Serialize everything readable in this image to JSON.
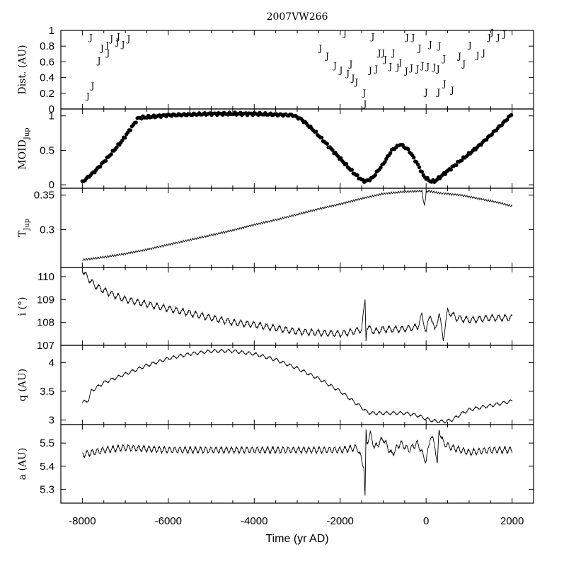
{
  "figure": {
    "title": "2007VW266",
    "xlabel": "Time (yr AD)"
  },
  "chart_data": [
    {
      "id": "dist",
      "type": "scatter",
      "ylabel": "Dist. (AU)",
      "marker": "J",
      "xlim": [
        -8500,
        2500
      ],
      "ylim": [
        0,
        1
      ],
      "yticks": [
        0,
        0.2,
        0.4,
        0.6,
        0.8,
        1
      ],
      "ytick_labels": [
        "0",
        "0.2",
        "0.4",
        "0.6",
        "0.8",
        "1"
      ],
      "points": [
        {
          "x": -7870,
          "y": 0.17
        },
        {
          "x": -7760,
          "y": 0.3
        },
        {
          "x": -7610,
          "y": 0.62
        },
        {
          "x": -7540,
          "y": 0.78
        },
        {
          "x": -7420,
          "y": 0.82
        },
        {
          "x": -7400,
          "y": 0.72
        },
        {
          "x": -7320,
          "y": 0.9
        },
        {
          "x": -7180,
          "y": 0.86
        },
        {
          "x": -7160,
          "y": 0.93
        },
        {
          "x": -7050,
          "y": 0.83
        },
        {
          "x": -6920,
          "y": 0.9
        },
        {
          "x": -7800,
          "y": 0.92
        },
        {
          "x": -2460,
          "y": 0.78
        },
        {
          "x": -2300,
          "y": 0.68
        },
        {
          "x": -2120,
          "y": 0.56
        },
        {
          "x": -1980,
          "y": 0.5
        },
        {
          "x": -1820,
          "y": 0.46
        },
        {
          "x": -1750,
          "y": 0.58
        },
        {
          "x": -1620,
          "y": 0.35
        },
        {
          "x": -1440,
          "y": 0.21
        },
        {
          "x": -1420,
          "y": 0.07
        },
        {
          "x": -1300,
          "y": 0.5
        },
        {
          "x": -1160,
          "y": 0.52
        },
        {
          "x": -1090,
          "y": 0.72
        },
        {
          "x": -1000,
          "y": 0.72
        },
        {
          "x": -950,
          "y": 0.64
        },
        {
          "x": -830,
          "y": 0.55
        },
        {
          "x": -760,
          "y": 0.72
        },
        {
          "x": -660,
          "y": 0.54
        },
        {
          "x": -600,
          "y": 0.6
        },
        {
          "x": -460,
          "y": 0.49
        },
        {
          "x": -340,
          "y": 0.53
        },
        {
          "x": -200,
          "y": 0.52
        },
        {
          "x": -150,
          "y": 0.78
        },
        {
          "x": -80,
          "y": 0.56
        },
        {
          "x": 40,
          "y": 0.55
        },
        {
          "x": 100,
          "y": 0.83
        },
        {
          "x": 190,
          "y": 0.54
        },
        {
          "x": 280,
          "y": 0.52
        },
        {
          "x": 310,
          "y": 0.81
        },
        {
          "x": 420,
          "y": 0.65
        },
        {
          "x": 430,
          "y": 0.33
        },
        {
          "x": 610,
          "y": 0.25
        },
        {
          "x": -1890,
          "y": 0.97
        },
        {
          "x": -1240,
          "y": 0.93
        },
        {
          "x": -440,
          "y": 0.92
        },
        {
          "x": -300,
          "y": 0.92
        },
        {
          "x": 0,
          "y": 0.22
        },
        {
          "x": 780,
          "y": 0.68
        },
        {
          "x": 880,
          "y": 0.58
        },
        {
          "x": 1020,
          "y": 0.82
        },
        {
          "x": 1200,
          "y": 0.69
        },
        {
          "x": 1340,
          "y": 0.72
        },
        {
          "x": 1470,
          "y": 0.92
        },
        {
          "x": 1530,
          "y": 0.98
        },
        {
          "x": 1680,
          "y": 0.92
        },
        {
          "x": 1820,
          "y": 0.96
        },
        {
          "x": -1700,
          "y": 0.4
        },
        {
          "x": 290,
          "y": 0.22
        }
      ]
    },
    {
      "id": "moid",
      "type": "scatter",
      "ylabel_main": "MOID",
      "ylabel_sub": "Jup",
      "xlim": [
        -8500,
        2500
      ],
      "ylim": [
        -0.05,
        1.1
      ],
      "yticks": [
        0,
        0.5,
        1
      ],
      "ytick_labels": [
        "0",
        "0.5",
        "1"
      ],
      "x": [
        -8000,
        -7700,
        -7400,
        -7100,
        -6800,
        -6700,
        -6000,
        -5000,
        -4000,
        -3100,
        -2900,
        -2600,
        -2300,
        -2000,
        -1700,
        -1500,
        -1400,
        -1250,
        -1000,
        -800,
        -600,
        -400,
        -200,
        -50,
        100,
        200,
        300,
        600,
        900,
        1200,
        1500,
        1800,
        2000
      ],
      "y": [
        0.04,
        0.2,
        0.4,
        0.62,
        0.88,
        0.97,
        1.01,
        1.03,
        1.03,
        1.01,
        0.95,
        0.78,
        0.58,
        0.38,
        0.18,
        0.07,
        0.05,
        0.1,
        0.3,
        0.5,
        0.59,
        0.5,
        0.3,
        0.12,
        0.05,
        0.05,
        0.1,
        0.25,
        0.4,
        0.55,
        0.72,
        0.9,
        1.03
      ]
    },
    {
      "id": "tjup",
      "type": "line",
      "ylabel_main": "T",
      "ylabel_sub": "Jup",
      "xlim": [
        -8500,
        2500
      ],
      "ylim": [
        0.245,
        0.36
      ],
      "yticks": [
        0.3,
        0.35
      ],
      "ytick_labels": [
        "0.3",
        "0.35"
      ],
      "x": [
        -8000,
        -7500,
        -7000,
        -6500,
        -6000,
        -5500,
        -5000,
        -4500,
        -4000,
        -3500,
        -3000,
        -2500,
        -2000,
        -1500,
        -1000,
        -500,
        -100,
        -40,
        0,
        50,
        300,
        800,
        1300,
        1700,
        2000
      ],
      "y": [
        0.256,
        0.26,
        0.265,
        0.271,
        0.278,
        0.285,
        0.292,
        0.299,
        0.307,
        0.314,
        0.322,
        0.33,
        0.337,
        0.345,
        0.352,
        0.355,
        0.356,
        0.334,
        0.354,
        0.356,
        0.353,
        0.35,
        0.344,
        0.339,
        0.334
      ]
    },
    {
      "id": "incl",
      "type": "line",
      "ylabel": "i (°)",
      "xlim": [
        -8500,
        2500
      ],
      "ylim": [
        107,
        110.4
      ],
      "yticks": [
        107,
        108,
        109,
        110
      ],
      "ytick_labels": [
        "107",
        "108",
        "109",
        "110"
      ],
      "x": [
        -8000,
        -7900,
        -7700,
        -7400,
        -7000,
        -6500,
        -6000,
        -5500,
        -5000,
        -4500,
        -4000,
        -3500,
        -3000,
        -2500,
        -2000,
        -1700,
        -1500,
        -1420,
        -1400,
        -1380,
        -1200,
        -1000,
        -600,
        -200,
        -100,
        0,
        100,
        200,
        300,
        400,
        500,
        700,
        1000,
        1500,
        2000
      ],
      "y": [
        110.3,
        110.0,
        109.6,
        109.3,
        109.0,
        108.8,
        108.6,
        108.4,
        108.2,
        108.0,
        107.9,
        107.75,
        107.6,
        107.55,
        107.5,
        107.6,
        107.7,
        109.0,
        107.3,
        107.8,
        107.6,
        107.7,
        107.7,
        107.8,
        108.3,
        107.6,
        108.4,
        107.6,
        108.4,
        107.3,
        108.5,
        108.2,
        108.1,
        108.2,
        108.2
      ]
    },
    {
      "id": "peri",
      "type": "line",
      "ylabel": "q (AU)",
      "xlim": [
        -8500,
        2500
      ],
      "ylim": [
        2.92,
        4.3
      ],
      "yticks": [
        3,
        3.5,
        4
      ],
      "ytick_labels": [
        "3",
        "3.5",
        "4"
      ],
      "x": [
        -8000,
        -7850,
        -7800,
        -7500,
        -7000,
        -6500,
        -6000,
        -5500,
        -5000,
        -4500,
        -4000,
        -3500,
        -3000,
        -2500,
        -2000,
        -1700,
        -1500,
        -1400,
        -1300,
        -1000,
        -500,
        -200,
        0,
        200,
        400,
        600,
        800,
        1000,
        1500,
        2000
      ],
      "y": [
        3.3,
        3.35,
        3.5,
        3.65,
        3.8,
        3.95,
        4.07,
        4.15,
        4.2,
        4.2,
        4.15,
        4.05,
        3.9,
        3.72,
        3.5,
        3.33,
        3.22,
        3.15,
        3.12,
        3.12,
        3.12,
        3.08,
        3.02,
        2.98,
        2.97,
        3.0,
        3.1,
        3.18,
        3.25,
        3.33
      ]
    },
    {
      "id": "semi",
      "type": "line",
      "ylabel": "a (AU)",
      "xlim": [
        -8500,
        2500
      ],
      "ylim": [
        5.24,
        5.58
      ],
      "yticks": [
        5.3,
        5.4,
        5.5
      ],
      "ytick_labels": [
        "5.3",
        "5.4",
        "5.5"
      ],
      "x": [
        -8000,
        -7500,
        -7000,
        -6000,
        -5000,
        -4000,
        -3000,
        -2000,
        -1600,
        -1450,
        -1420,
        -1400,
        -1380,
        -1300,
        -1200,
        -1000,
        -800,
        -600,
        -400,
        -200,
        0,
        100,
        200,
        260,
        300,
        400,
        600,
        1000,
        1500,
        2000
      ],
      "y": [
        5.45,
        5.47,
        5.48,
        5.47,
        5.47,
        5.47,
        5.47,
        5.47,
        5.48,
        5.4,
        5.26,
        5.55,
        5.5,
        5.54,
        5.48,
        5.52,
        5.45,
        5.5,
        5.47,
        5.5,
        5.42,
        5.53,
        5.5,
        5.4,
        5.56,
        5.5,
        5.48,
        5.46,
        5.47,
        5.47
      ]
    }
  ],
  "xaxis": {
    "ticks": [
      -8000,
      -6000,
      -4000,
      -2000,
      0,
      2000
    ],
    "tick_labels": [
      "-8000",
      "-6000",
      "-4000",
      "-2000",
      "0",
      "2000"
    ]
  }
}
